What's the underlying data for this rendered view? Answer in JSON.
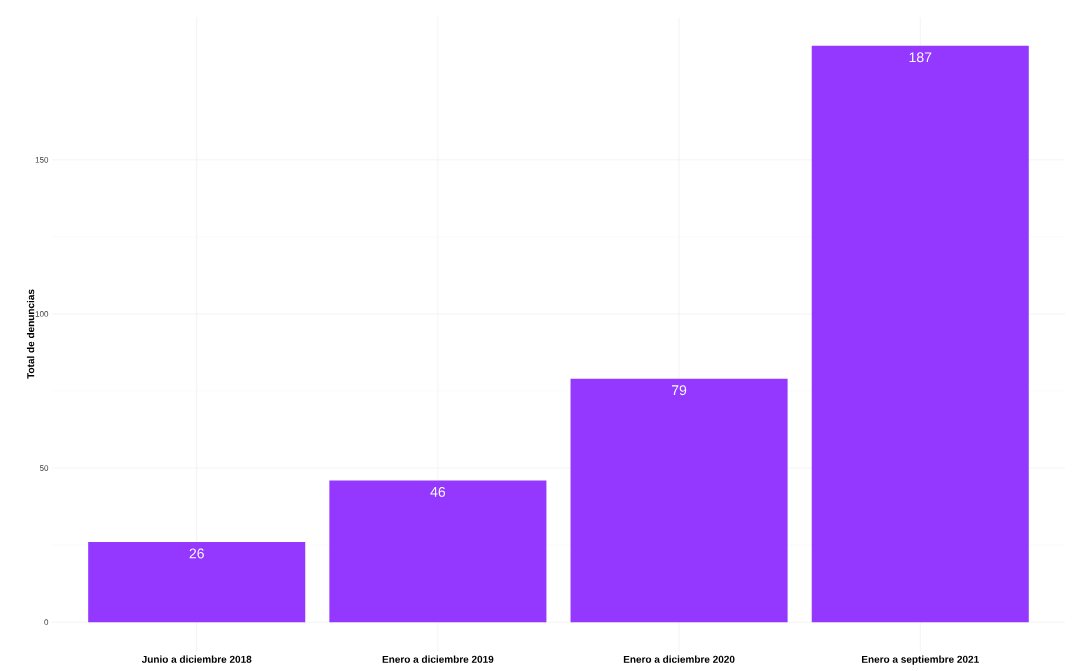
{
  "chart_data": {
    "type": "bar",
    "ylabel": "Total de denuncias",
    "categories": [
      "Junio a diciembre 2018",
      "Enero a diciembre 2019",
      "Enero a diciembre 2020",
      "Enero a septiembre 2021"
    ],
    "values": [
      26,
      46,
      79,
      187
    ],
    "color": "#9538ff",
    "ylim": [
      -9.35,
      196.35
    ],
    "yticks": [
      0,
      50,
      100,
      150
    ],
    "grid": true,
    "data_labels": true
  }
}
